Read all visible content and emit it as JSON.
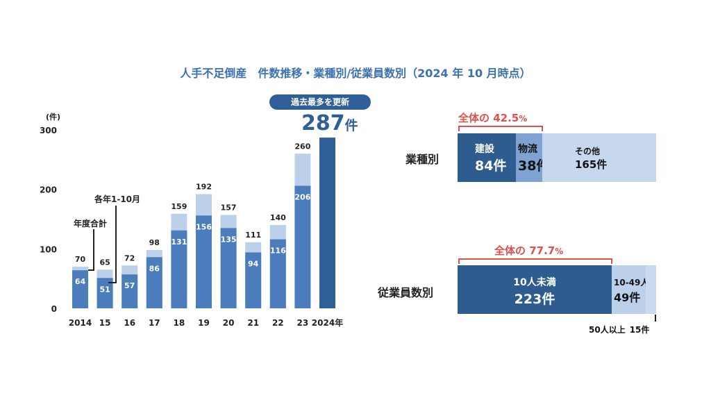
{
  "title": "人手不足倒産　件数推移・業種別/従業員数別（2024 年 10 月時点）",
  "chart_data": [
    {
      "type": "bar",
      "title": "",
      "unit_label": "(件)",
      "categories": [
        "2014",
        "15",
        "16",
        "17",
        "18",
        "19",
        "20",
        "21",
        "22",
        "23",
        "2024年"
      ],
      "series": [
        {
          "name": "年度合計",
          "values": [
            70,
            65,
            72,
            98,
            159,
            192,
            157,
            111,
            140,
            260,
            null
          ]
        },
        {
          "name": "各年1-10月",
          "values": [
            64,
            51,
            57,
            86,
            131,
            156,
            135,
            94,
            116,
            206,
            287
          ]
        }
      ],
      "y_ticks": [
        "0",
        "100",
        "200",
        "300"
      ],
      "ylim": [
        0,
        300
      ],
      "colors": {
        "total": "#bcd0ea",
        "jan_oct": "#4b7dbd",
        "latest": "#2f5f98"
      },
      "badge": "過去最多を更新",
      "highlight_value": "287",
      "highlight_unit": "件"
    },
    {
      "type": "bar",
      "orientation": "horizontal-stacked",
      "row_label": "業種別",
      "share_text": "全体の 42.5",
      "share_unit": "%",
      "segments": [
        {
          "label": "建設",
          "value_text": "84件",
          "value": 84,
          "color": "#2f5c8f"
        },
        {
          "label": "物流",
          "value_text": "38件",
          "value": 38,
          "color": "#7ea2d1"
        },
        {
          "label": "その他",
          "value_text": "165件",
          "value": 165,
          "color": "#c6d7ee"
        }
      ]
    },
    {
      "type": "bar",
      "orientation": "horizontal-stacked",
      "row_label": "従業員数別",
      "share_text": "全体の 77.7",
      "share_unit": "%",
      "segments": [
        {
          "label": "10人未満",
          "value_text": "223件",
          "value": 223,
          "color": "#2f5c8f"
        },
        {
          "label": "10-49人",
          "value_text": "49件",
          "value": 49,
          "color": "#bcd0ea"
        },
        {
          "label": "50人以上",
          "value_text": "15件",
          "value": 15,
          "color": "#c9daef"
        }
      ]
    }
  ],
  "annotations": {
    "total_note": "年度合計",
    "period_note": "各年1-10月"
  }
}
